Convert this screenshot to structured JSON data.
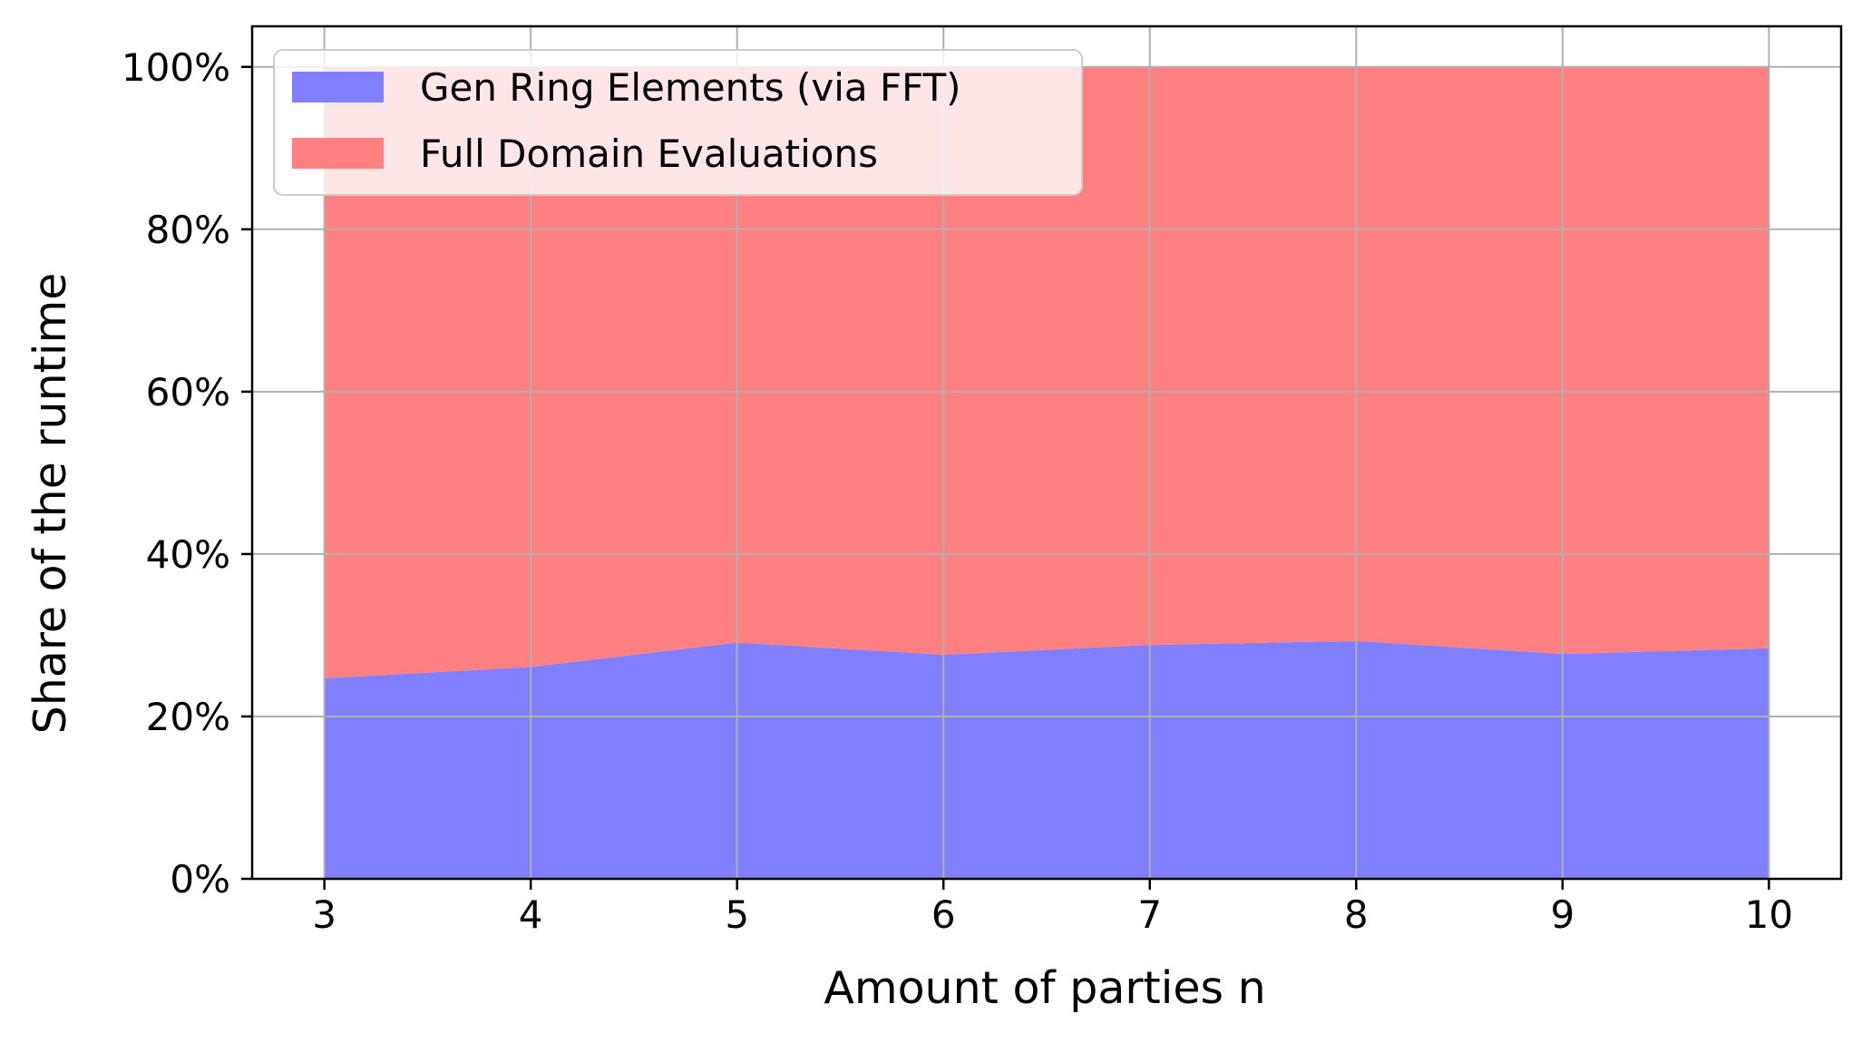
{
  "chart_data": {
    "type": "area",
    "stacked": true,
    "normalized": true,
    "title": "",
    "xlabel": "Amount of parties n",
    "ylabel": "Share of the runtime",
    "x": [
      3,
      4,
      5,
      6,
      7,
      8,
      9,
      10
    ],
    "xticks": [
      "3",
      "4",
      "5",
      "6",
      "7",
      "8",
      "9",
      "10"
    ],
    "xlim": [
      2.65,
      10.35
    ],
    "ylim": [
      0,
      1.05
    ],
    "yticks": [
      0,
      0.2,
      0.4,
      0.6,
      0.8,
      1.0
    ],
    "yticklabels": [
      "0%",
      "20%",
      "40%",
      "60%",
      "80%",
      "100%"
    ],
    "grid": true,
    "legend_position": "upper-left",
    "series": [
      {
        "name": "Gen Ring Elements (via FFT)",
        "color": "#8080ff",
        "values": [
          0.247,
          0.261,
          0.291,
          0.276,
          0.288,
          0.293,
          0.277,
          0.284
        ]
      },
      {
        "name": "Full Domain Evaluations",
        "color": "#ff8080",
        "values": [
          0.753,
          0.739,
          0.709,
          0.724,
          0.712,
          0.707,
          0.723,
          0.716
        ]
      }
    ]
  }
}
